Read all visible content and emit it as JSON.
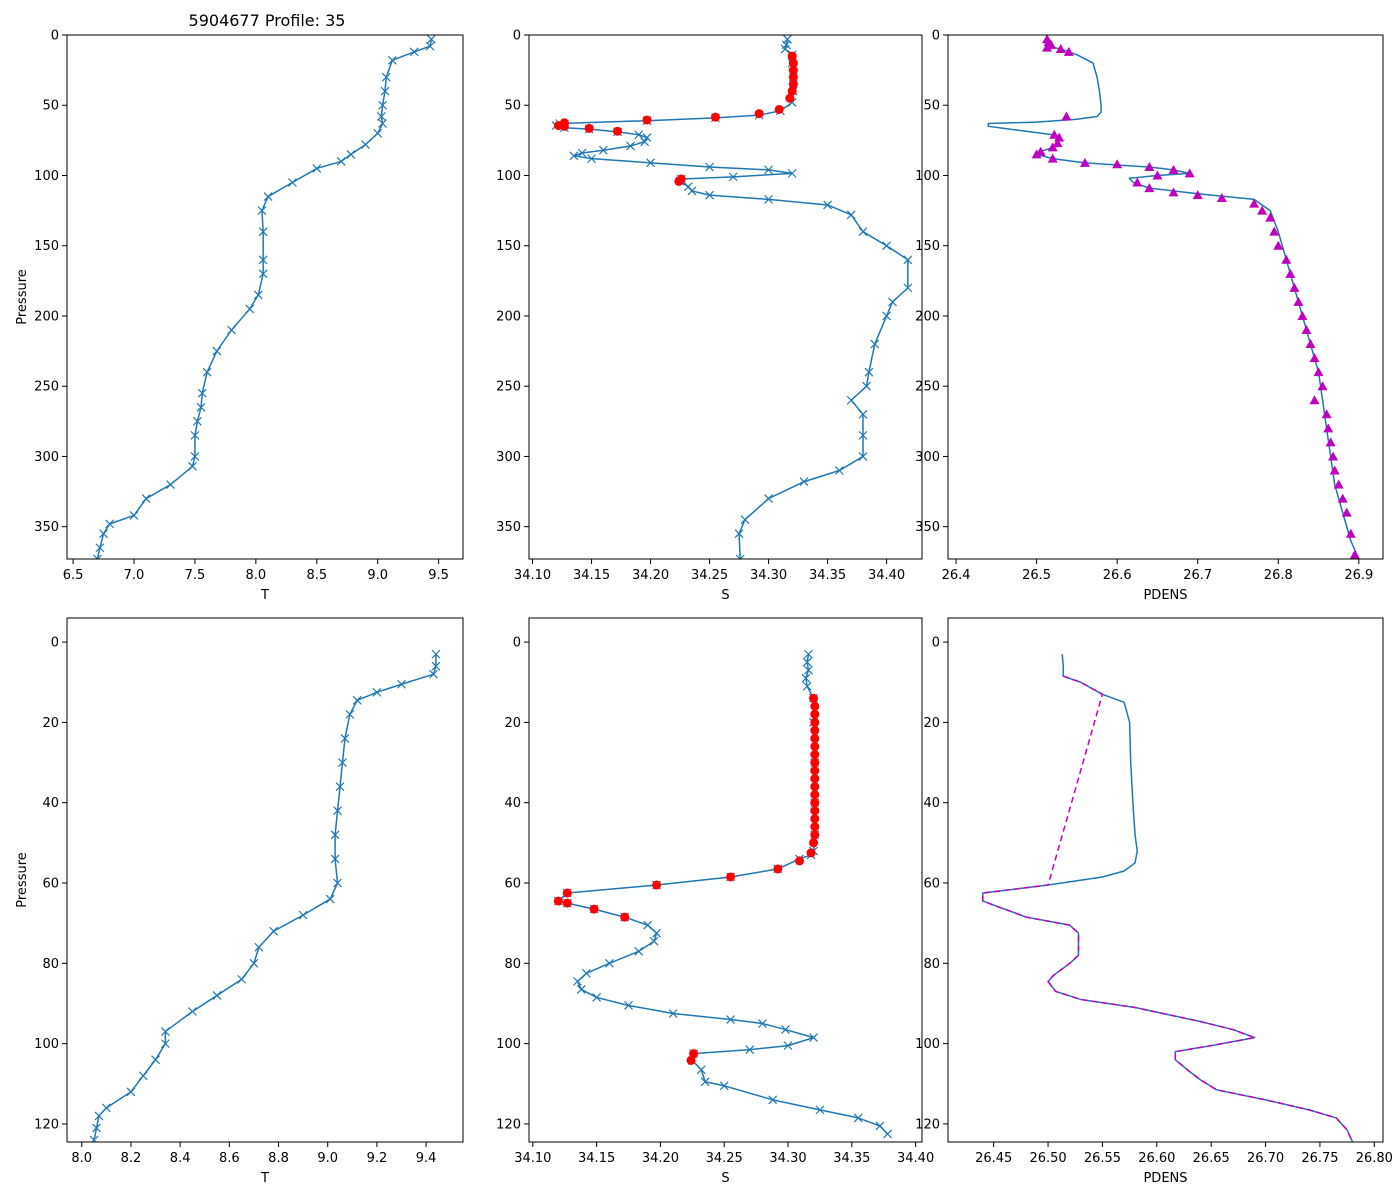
{
  "figure_title": "5904677 Profile: 35",
  "colors": {
    "line": "#1f77b4",
    "flag": "#ff0000",
    "density": "#bf00bf",
    "frame": "#000000"
  },
  "chart_data": [
    {
      "id": "top-temperature",
      "type": "line",
      "xlabel": "T",
      "ylabel": "Pressure",
      "xlim": [
        6.45,
        9.7
      ],
      "ylim": [
        0,
        373
      ],
      "y_inverted": true,
      "xticks": [
        6.5,
        7.0,
        7.5,
        8.0,
        8.5,
        9.0,
        9.5
      ],
      "yticks": [
        0,
        50,
        100,
        150,
        200,
        250,
        300,
        350
      ],
      "series": [
        {
          "name": "T",
          "marker": "x",
          "color": "#1f77b4",
          "x": [
            9.44,
            9.43,
            9.3,
            9.12,
            9.07,
            9.06,
            9.04,
            9.03,
            9.04,
            9.0,
            8.9,
            8.78,
            8.7,
            8.5,
            8.3,
            8.1,
            8.05,
            8.06,
            8.06,
            8.06,
            8.02,
            7.95,
            7.8,
            7.68,
            7.6,
            7.56,
            7.55,
            7.52,
            7.5,
            7.5,
            7.48,
            7.3,
            7.1,
            7.0,
            6.8,
            6.75,
            6.72,
            6.7
          ],
          "y": [
            3,
            8,
            12,
            18,
            30,
            40,
            50,
            58,
            63,
            70,
            78,
            85,
            90,
            95,
            105,
            115,
            125,
            140,
            160,
            170,
            185,
            195,
            210,
            225,
            240,
            255,
            265,
            275,
            285,
            300,
            307,
            320,
            330,
            342,
            348,
            355,
            365,
            373
          ]
        }
      ]
    },
    {
      "id": "top-salinity",
      "type": "line",
      "xlabel": "S",
      "ylabel": "",
      "xlim": [
        34.097,
        34.43
      ],
      "ylim": [
        0,
        373
      ],
      "y_inverted": true,
      "xticks": [
        34.1,
        34.15,
        34.2,
        34.25,
        34.3,
        34.35,
        34.4
      ],
      "yticks": [
        0,
        50,
        100,
        150,
        200,
        250,
        300,
        350
      ],
      "series": [
        {
          "name": "S",
          "marker": "x",
          "color": "#1f77b4",
          "x": [
            34.316,
            34.315,
            34.314,
            34.32,
            34.32,
            34.321,
            34.321,
            34.32,
            34.31,
            34.292,
            34.255,
            34.197,
            34.123,
            34.12,
            34.127,
            34.148,
            34.172,
            34.19,
            34.197,
            34.195,
            34.183,
            34.16,
            34.142,
            34.135,
            34.15,
            34.2,
            34.25,
            34.3,
            34.32,
            34.27,
            34.226,
            34.225,
            34.232,
            34.235,
            34.25,
            34.3,
            34.35,
            34.37,
            34.38,
            34.4,
            34.418,
            34.418,
            34.405,
            34.4,
            34.39,
            34.385,
            34.383,
            34.37,
            34.38,
            34.38,
            34.38,
            34.36,
            34.33,
            34.3,
            34.28,
            34.275,
            34.276
          ],
          "y": [
            3,
            7,
            10,
            14,
            20,
            30,
            40,
            48,
            54,
            57,
            59,
            61,
            63,
            64.5,
            66,
            67,
            69,
            71,
            73,
            76,
            79,
            82,
            84,
            86,
            88,
            91,
            94,
            96,
            98.5,
            101,
            102.5,
            104,
            108,
            111,
            114,
            117,
            121,
            128,
            140,
            150,
            160,
            180,
            190,
            200,
            220,
            240,
            250,
            260,
            270,
            285,
            300,
            310,
            318,
            330,
            345,
            355,
            373
          ]
        },
        {
          "name": "flagged",
          "marker": "o",
          "color": "#ff0000",
          "x": [
            34.32,
            34.321,
            34.321,
            34.321,
            34.321,
            34.32,
            34.318,
            34.309,
            34.292,
            34.255,
            34.197,
            34.127,
            34.122,
            34.127,
            34.148,
            34.172,
            34.226,
            34.224
          ],
          "y": [
            15,
            20,
            25,
            30,
            35,
            40,
            45,
            53,
            56,
            58.5,
            60.5,
            62.5,
            64.5,
            65,
            66.5,
            68.5,
            102.5,
            104.2
          ]
        }
      ]
    },
    {
      "id": "top-density",
      "type": "line",
      "xlabel": "PDENS",
      "ylabel": "",
      "xlim": [
        26.39,
        26.93
      ],
      "ylim": [
        0,
        373
      ],
      "y_inverted": true,
      "xticks": [
        26.4,
        26.5,
        26.6,
        26.7,
        26.8,
        26.9
      ],
      "yticks": [
        0,
        50,
        100,
        150,
        200,
        250,
        300,
        350
      ],
      "series": [
        {
          "name": "PDENS",
          "marker": "none",
          "color": "#1f77b4",
          "x": [
            26.513,
            26.515,
            26.53,
            26.55,
            26.57,
            26.575,
            26.578,
            26.58,
            26.58,
            26.575,
            26.55,
            26.5,
            26.44,
            26.44,
            26.48,
            26.52,
            26.528,
            26.526,
            26.52,
            26.505,
            26.5,
            26.52,
            26.56,
            26.64,
            26.67,
            26.69,
            26.65,
            26.615,
            26.62,
            26.64,
            26.7,
            26.77,
            26.79,
            26.8,
            26.81,
            26.82,
            26.83,
            26.84,
            26.85,
            26.855,
            26.86,
            26.865,
            26.87,
            26.88,
            26.89,
            26.9
          ],
          "y": [
            3,
            8,
            10,
            14,
            20,
            30,
            40,
            50,
            55,
            58,
            60,
            62,
            63,
            65,
            68,
            71,
            73,
            77,
            80,
            83,
            85,
            88,
            91,
            94,
            96,
            98.5,
            100,
            102,
            105,
            109,
            113,
            117,
            125,
            140,
            160,
            180,
            200,
            220,
            240,
            260,
            280,
            300,
            320,
            340,
            360,
            373
          ]
        },
        {
          "name": "PDENS-flagged",
          "marker": "^",
          "color": "#bf00bf",
          "x": [
            26.513,
            26.515,
            26.518,
            26.513,
            26.53,
            26.54,
            26.537,
            26.522,
            26.528,
            26.526,
            26.52,
            26.505,
            26.5,
            26.52,
            26.56,
            26.6,
            26.64,
            26.67,
            26.69,
            26.65,
            26.625,
            26.64,
            26.67,
            26.7,
            26.73,
            26.77,
            26.78,
            26.79,
            26.795,
            26.8,
            26.81,
            26.815,
            26.82,
            26.825,
            26.83,
            26.835,
            26.84,
            26.845,
            26.85,
            26.855,
            26.845,
            26.86,
            26.862,
            26.865,
            26.868,
            26.87,
            26.875,
            26.88,
            26.885,
            26.89,
            26.895
          ],
          "y": [
            3,
            5,
            7,
            9,
            10,
            12,
            58,
            71,
            73,
            77,
            80,
            83,
            85,
            88,
            91,
            92,
            94,
            96,
            98.5,
            100,
            105,
            109,
            112,
            114,
            116,
            120,
            125,
            130,
            140,
            150,
            160,
            170,
            180,
            190,
            200,
            210,
            220,
            230,
            240,
            250,
            260,
            270,
            280,
            290,
            300,
            310,
            320,
            330,
            340,
            355,
            370
          ]
        }
      ]
    },
    {
      "id": "bottom-temperature",
      "type": "line",
      "xlabel": "T",
      "ylabel": "Pressure",
      "xlim": [
        7.94,
        9.55
      ],
      "ylim": [
        -6,
        124.5
      ],
      "y_inverted": true,
      "xticks": [
        8.0,
        8.2,
        8.4,
        8.6,
        8.8,
        9.0,
        9.2,
        9.4
      ],
      "yticks": [
        0,
        20,
        40,
        60,
        80,
        100,
        120
      ],
      "series": [
        {
          "name": "T",
          "marker": "x",
          "color": "#1f77b4",
          "x": [
            9.44,
            9.44,
            9.43,
            9.3,
            9.2,
            9.12,
            9.09,
            9.07,
            9.06,
            9.05,
            9.04,
            9.03,
            9.03,
            9.04,
            9.01,
            8.9,
            8.78,
            8.72,
            8.7,
            8.65,
            8.55,
            8.45,
            8.34,
            8.34,
            8.3,
            8.25,
            8.2,
            8.1,
            8.07,
            8.06,
            8.05
          ],
          "y": [
            3,
            6,
            8,
            10.5,
            12.5,
            14.5,
            18,
            24,
            30,
            36,
            42,
            48,
            54,
            60,
            64,
            68,
            72,
            76,
            80,
            84,
            88,
            92,
            97,
            100,
            104,
            108,
            112,
            116,
            118,
            121,
            124
          ]
        }
      ]
    },
    {
      "id": "bottom-salinity",
      "type": "line",
      "xlabel": "S",
      "ylabel": "",
      "xlim": [
        34.097,
        34.405
      ],
      "ylim": [
        -6,
        124.5
      ],
      "y_inverted": true,
      "xticks": [
        34.1,
        34.15,
        34.2,
        34.25,
        34.3,
        34.35,
        34.4
      ],
      "yticks": [
        0,
        20,
        40,
        60,
        80,
        100,
        120
      ],
      "series": [
        {
          "name": "S",
          "marker": "x",
          "color": "#1f77b4",
          "x": [
            34.316,
            34.315,
            34.316,
            34.314,
            34.315,
            34.32,
            34.32,
            34.321,
            34.321,
            34.321,
            34.32,
            34.318,
            34.309,
            34.292,
            34.255,
            34.197,
            34.127,
            34.12,
            34.127,
            34.148,
            34.172,
            34.19,
            34.197,
            34.195,
            34.183,
            34.16,
            34.142,
            34.135,
            34.138,
            34.15,
            34.175,
            34.21,
            34.255,
            34.28,
            34.298,
            34.32,
            34.3,
            34.27,
            34.226,
            34.225,
            34.232,
            34.235,
            34.25,
            34.288,
            34.325,
            34.355,
            34.372,
            34.378
          ],
          "y": [
            3,
            5,
            7,
            9,
            11,
            14,
            20,
            30,
            40,
            48,
            52,
            53,
            54,
            56.5,
            58.5,
            60.5,
            62.5,
            64.5,
            65,
            66.5,
            68.5,
            70.5,
            72.5,
            74.5,
            77,
            80,
            82.5,
            84.5,
            86.5,
            88.5,
            90.5,
            92.5,
            94,
            95,
            96.5,
            98.5,
            100.5,
            101.5,
            102.5,
            104.2,
            106.5,
            109.5,
            110.5,
            114,
            116.5,
            118.5,
            120.5,
            122.5
          ]
        },
        {
          "name": "flagged",
          "marker": "o",
          "color": "#ff0000",
          "x": [
            34.32,
            34.321,
            34.321,
            34.321,
            34.321,
            34.321,
            34.321,
            34.321,
            34.321,
            34.321,
            34.321,
            34.321,
            34.321,
            34.321,
            34.321,
            34.321,
            34.321,
            34.321,
            34.32,
            34.318,
            34.309,
            34.292,
            34.255,
            34.197,
            34.127,
            34.12,
            34.127,
            34.148,
            34.172,
            34.226,
            34.224
          ],
          "y": [
            14,
            16,
            18,
            20,
            22,
            24,
            26,
            28,
            30,
            32,
            34,
            36,
            38,
            40,
            42,
            44,
            46,
            48,
            50,
            52.5,
            54.5,
            56.5,
            58.5,
            60.5,
            62.5,
            64.5,
            65,
            66.5,
            68.5,
            102.5,
            104.2
          ]
        }
      ]
    },
    {
      "id": "bottom-density",
      "type": "line",
      "xlabel": "PDENS",
      "ylabel": "",
      "xlim": [
        26.408,
        26.808
      ],
      "ylim": [
        -6,
        124.5
      ],
      "y_inverted": true,
      "xticks": [
        26.45,
        26.5,
        26.55,
        26.6,
        26.65,
        26.7,
        26.75,
        26.8
      ],
      "yticks": [
        0,
        20,
        40,
        60,
        80,
        100,
        120
      ],
      "series": [
        {
          "name": "PDENS",
          "marker": "none",
          "color": "#1f77b4",
          "x": [
            26.513,
            26.514,
            26.514,
            26.53,
            26.55,
            26.57,
            26.575,
            26.576,
            26.578,
            26.58,
            26.582,
            26.58,
            26.57,
            26.55,
            26.5,
            26.44,
            26.44,
            26.48,
            26.52,
            26.528,
            26.528,
            26.52,
            26.505,
            26.5,
            26.507,
            26.53,
            26.58,
            26.64,
            26.67,
            26.69,
            26.65,
            26.617,
            26.617,
            26.628,
            26.64,
            26.655,
            26.7,
            26.74,
            26.765,
            26.775,
            26.78
          ],
          "y": [
            3,
            6,
            8.5,
            10,
            13,
            15,
            20,
            30,
            40,
            48,
            52,
            55,
            57,
            58.5,
            60.5,
            62.5,
            64.5,
            68.5,
            70.5,
            72.5,
            78,
            80,
            83,
            84.5,
            87,
            89,
            91,
            94.5,
            96.5,
            98.5,
            100.5,
            102,
            104,
            106.5,
            109,
            111.5,
            114,
            116.5,
            118.5,
            121.5,
            124.5
          ]
        },
        {
          "name": "PDENS-flagged",
          "marker": "none",
          "color": "#bf00bf",
          "dashed": true,
          "x": [
            26.514,
            26.53,
            26.55,
            26.5,
            26.44,
            26.44,
            26.48,
            26.52,
            26.528,
            26.528,
            26.52,
            26.505,
            26.5,
            26.507,
            26.53,
            26.58,
            26.64,
            26.67,
            26.69,
            26.65,
            26.617,
            26.617,
            26.628,
            26.64,
            26.655,
            26.7,
            26.74,
            26.765,
            26.775,
            26.78
          ],
          "y": [
            8.5,
            10,
            13,
            60.5,
            62.5,
            64.5,
            68.5,
            70.5,
            72.5,
            78,
            80,
            83,
            84.5,
            87,
            89,
            91,
            94.5,
            96.5,
            98.5,
            100.5,
            102,
            104,
            106.5,
            109,
            111.5,
            114,
            116.5,
            118.5,
            121.5,
            124.5
          ]
        }
      ]
    }
  ]
}
